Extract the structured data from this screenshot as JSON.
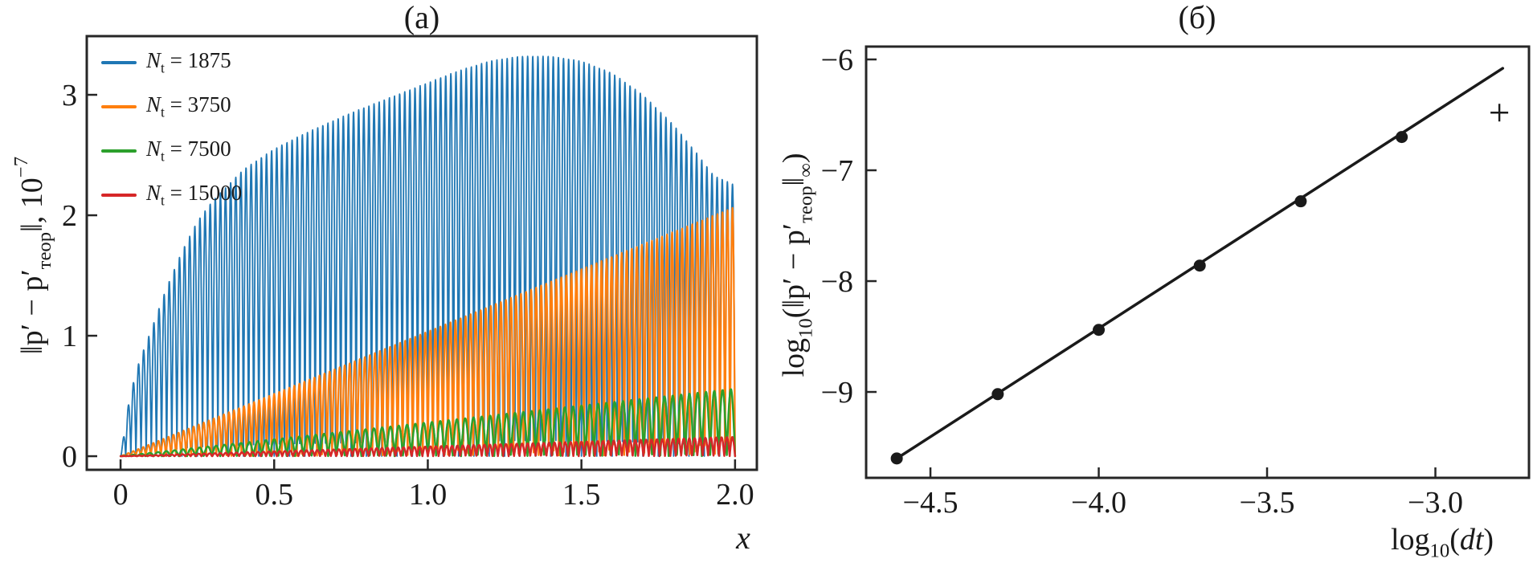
{
  "chart_data": [
    {
      "type": "line",
      "panel": "a",
      "title": "(a)",
      "xlabel": "x",
      "ylabel_parts": {
        "pre": "‖p′ − p′",
        "sub": "теор",
        "post": "‖, 10",
        "sup": "−7"
      },
      "xlim": [
        -0.11,
        2.071
      ],
      "ylim": [
        -0.113,
        3.487
      ],
      "x_ticks": [
        0,
        0.5,
        1.0,
        1.5,
        2.0
      ],
      "x_tick_labels": [
        "0",
        "0.5",
        "1.0",
        "1.5",
        "2.0"
      ],
      "y_ticks": [
        0,
        1,
        2,
        3
      ],
      "y_tick_labels": [
        "0",
        "1",
        "2",
        "3"
      ],
      "grid": false,
      "legend_position": "top-left",
      "legend": {
        "var": "N",
        "var_sub": "t",
        "eq": " = "
      },
      "x_data_range": [
        0,
        2
      ],
      "series": [
        {
          "value": "1875",
          "color": "#1f77b4",
          "spikes_per_unit": 60,
          "envelope": [
            [
              0,
              0
            ],
            [
              0.03,
              0.5
            ],
            [
              0.06,
              0.78
            ],
            [
              0.1,
              1.05
            ],
            [
              0.15,
              1.4
            ],
            [
              0.2,
              1.7
            ],
            [
              0.25,
              1.95
            ],
            [
              0.3,
              2.12
            ],
            [
              0.4,
              2.38
            ],
            [
              0.5,
              2.55
            ],
            [
              0.6,
              2.68
            ],
            [
              0.75,
              2.85
            ],
            [
              0.9,
              3.0
            ],
            [
              1.0,
              3.1
            ],
            [
              1.1,
              3.2
            ],
            [
              1.2,
              3.28
            ],
            [
              1.3,
              3.32
            ],
            [
              1.4,
              3.32
            ],
            [
              1.5,
              3.28
            ],
            [
              1.6,
              3.18
            ],
            [
              1.7,
              3.0
            ],
            [
              1.8,
              2.75
            ],
            [
              1.88,
              2.5
            ],
            [
              1.93,
              2.33
            ],
            [
              2.0,
              2.25
            ]
          ]
        },
        {
          "value": "3750",
          "color": "#ff7f0e",
          "spikes_per_unit": 61,
          "envelope": [
            [
              0,
              0
            ],
            [
              2,
              2.07
            ]
          ]
        },
        {
          "value": "7500",
          "color": "#2ca02c",
          "spikes_per_unit": 37,
          "envelope": [
            [
              0,
              0
            ],
            [
              2,
              0.56
            ]
          ]
        },
        {
          "value": "15000",
          "color": "#d62728",
          "spikes_per_unit": 57,
          "envelope": [
            [
              0,
              0
            ],
            [
              2,
              0.16
            ]
          ]
        }
      ]
    },
    {
      "type": "scatter",
      "panel": "b",
      "title": "(б)",
      "xlabel_parts": {
        "base": "log",
        "sub": "10",
        "open": "(",
        "arg": "dt",
        "close": ")"
      },
      "ylabel_parts": {
        "base": "log",
        "sub": "10",
        "open": "(‖p′ − p′",
        "normsub": "теор",
        "close": "‖",
        "infsub": "∞",
        "paren": ")"
      },
      "xlim": [
        -4.691,
        -2.722
      ],
      "ylim": [
        -9.775,
        -5.884
      ],
      "x_ticks": [
        -4.5,
        -4.0,
        -3.5,
        -3.0
      ],
      "x_tick_labels": [
        "−4.5",
        "−4.0",
        "−3.5",
        "−3.0"
      ],
      "y_ticks": [
        -6,
        -7,
        -8,
        -9
      ],
      "y_tick_labels": [
        "−6",
        "−7",
        "−8",
        "−9"
      ],
      "grid": false,
      "points": {
        "x": [
          -4.6,
          -4.3,
          -4.0,
          -3.7,
          -3.4,
          -3.1
        ],
        "y": [
          -9.6,
          -9.02,
          -8.44,
          -7.86,
          -7.28,
          -6.7
        ]
      },
      "fit_line": {
        "x1": -4.6,
        "y1": -9.6,
        "x2": -2.8,
        "y2": -6.08
      },
      "plus_marker": {
        "x": -2.81,
        "y": -6.48
      },
      "line_color": "#1a1a1a",
      "marker_color": "#1a1a1a"
    }
  ]
}
